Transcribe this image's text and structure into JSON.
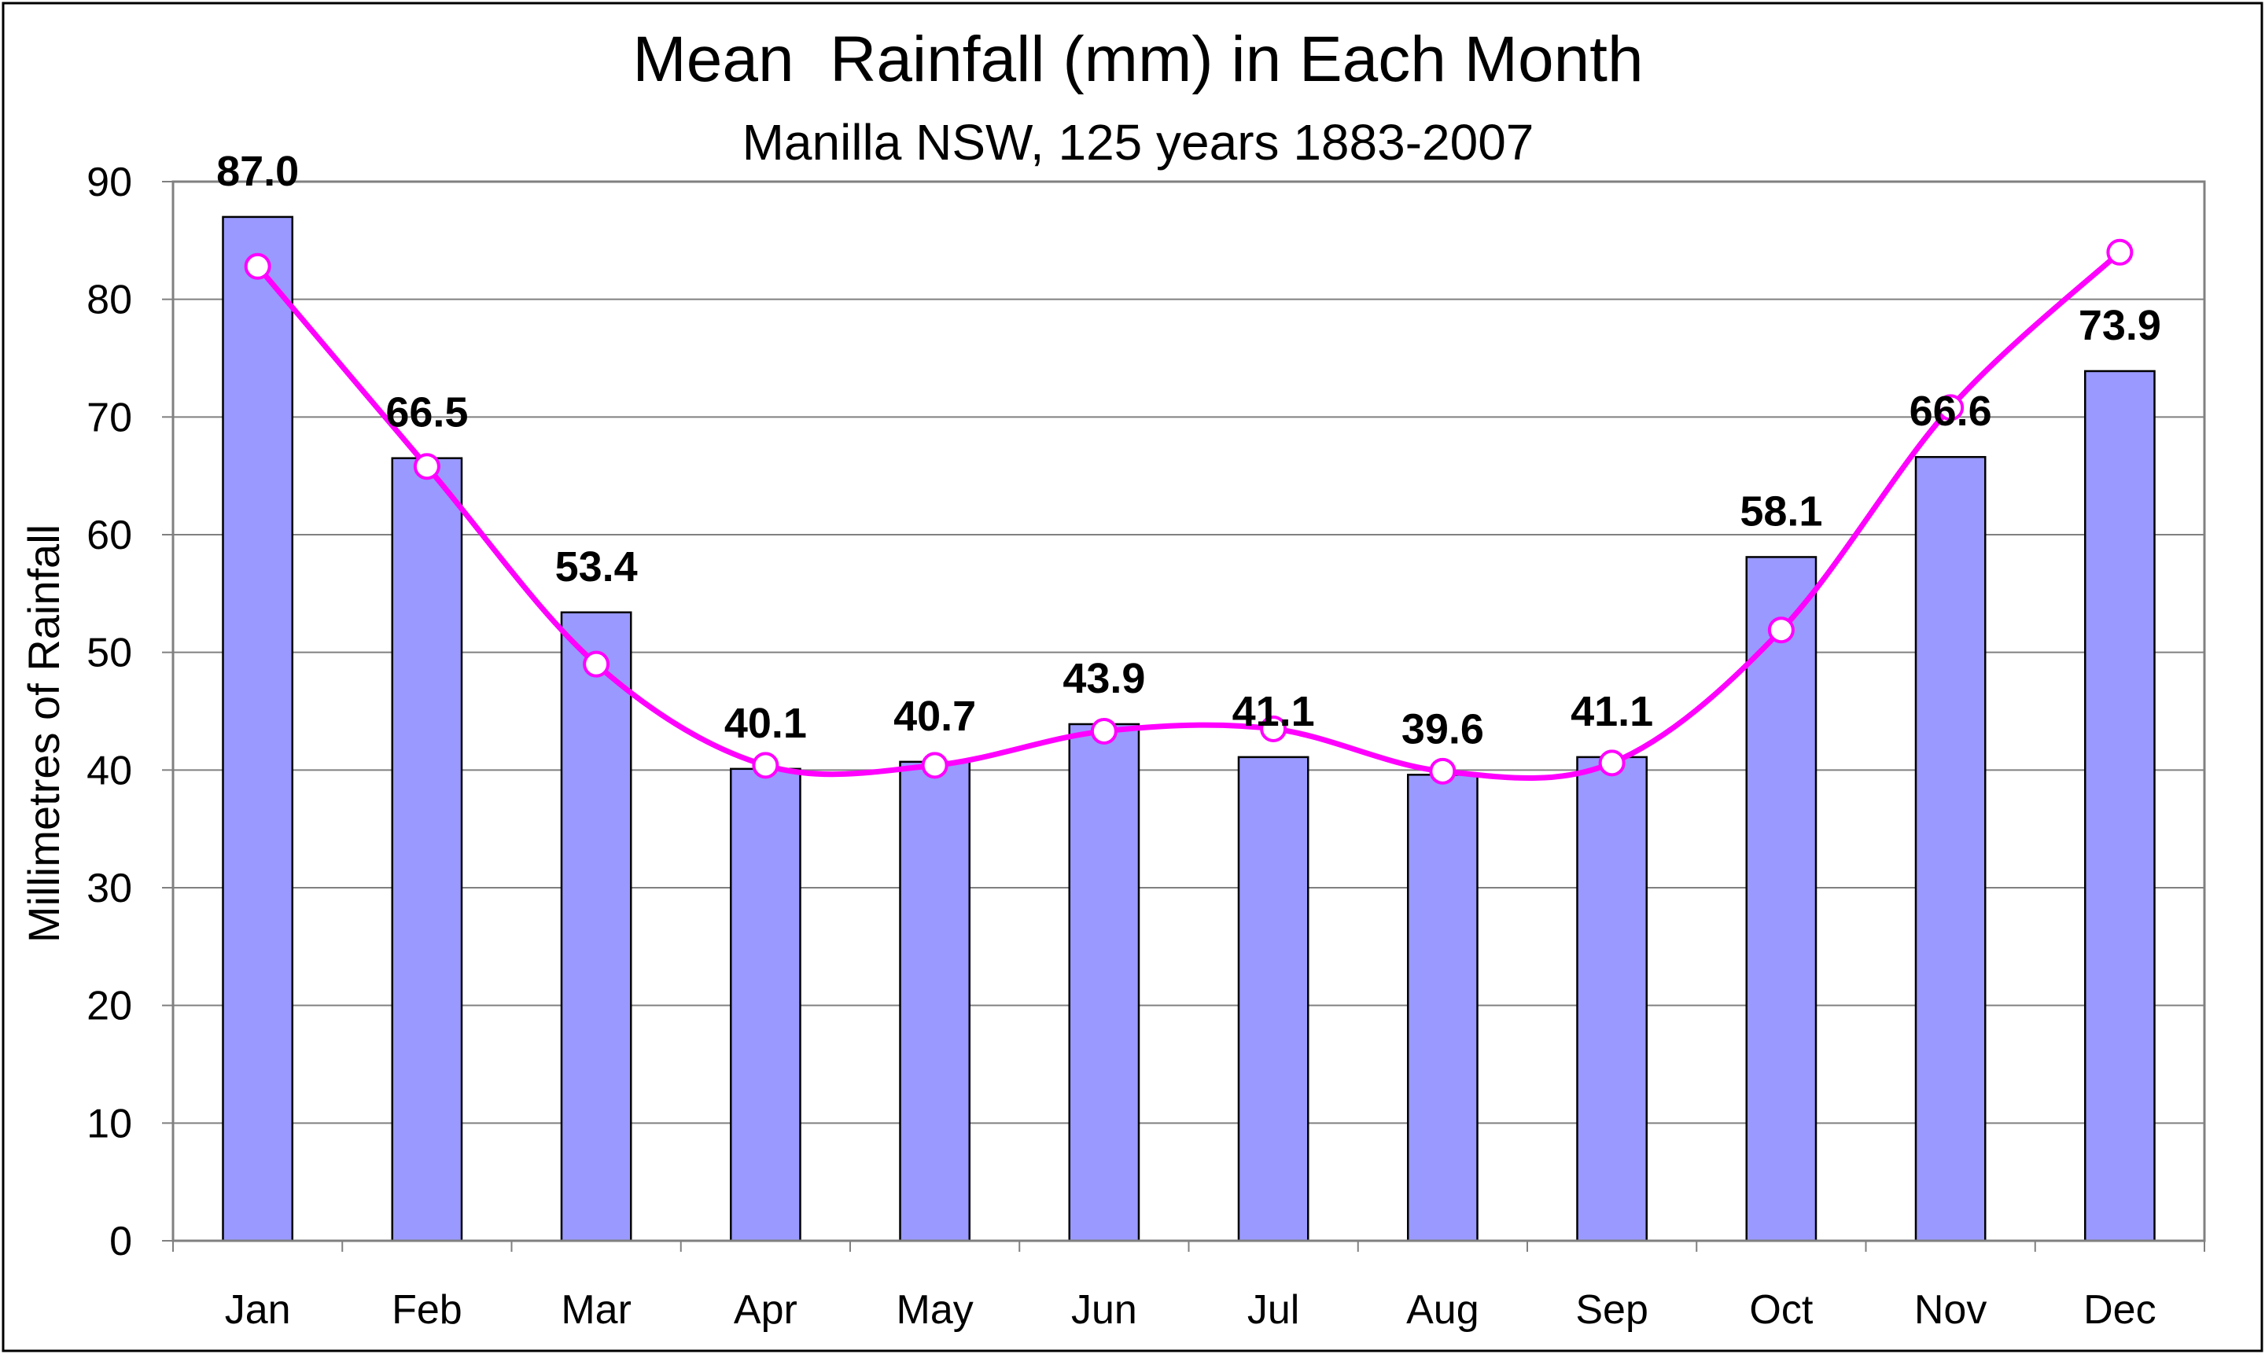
{
  "chart_data": {
    "type": "bar",
    "title": "Mean  Rainfall (mm) in Each Month",
    "subtitle": "Manilla NSW, 125 years 1883-2007",
    "xlabel": "",
    "ylabel": "Millimetres of Rainfall",
    "ylim": [
      0,
      90
    ],
    "yticks": [
      "0",
      "10",
      "20",
      "30",
      "40",
      "50",
      "60",
      "70",
      "80",
      "90"
    ],
    "grid": true,
    "categories": [
      "Jan",
      "Feb",
      "Mar",
      "Apr",
      "May",
      "Jun",
      "Jul",
      "Aug",
      "Sep",
      "Oct",
      "Nov",
      "Dec"
    ],
    "series": [
      {
        "type": "bar",
        "values": [
          87.0,
          66.5,
          53.4,
          40.1,
          40.7,
          43.9,
          41.1,
          39.6,
          41.1,
          58.1,
          66.6,
          73.9
        ],
        "data_labels": [
          "87.0",
          "66.5",
          "53.4",
          "40.1",
          "40.7",
          "43.9",
          "41.1",
          "39.6",
          "41.1",
          "58.1",
          "66.6",
          "73.9"
        ],
        "color": "#9999ff"
      },
      {
        "type": "line",
        "smooth": true,
        "values": [
          82.8,
          65.8,
          49.0,
          40.4,
          40.4,
          43.3,
          43.5,
          39.9,
          40.6,
          51.9,
          70.8,
          84.0
        ],
        "color": "#ff00ff",
        "marker_fill": "#ffffff"
      }
    ]
  }
}
